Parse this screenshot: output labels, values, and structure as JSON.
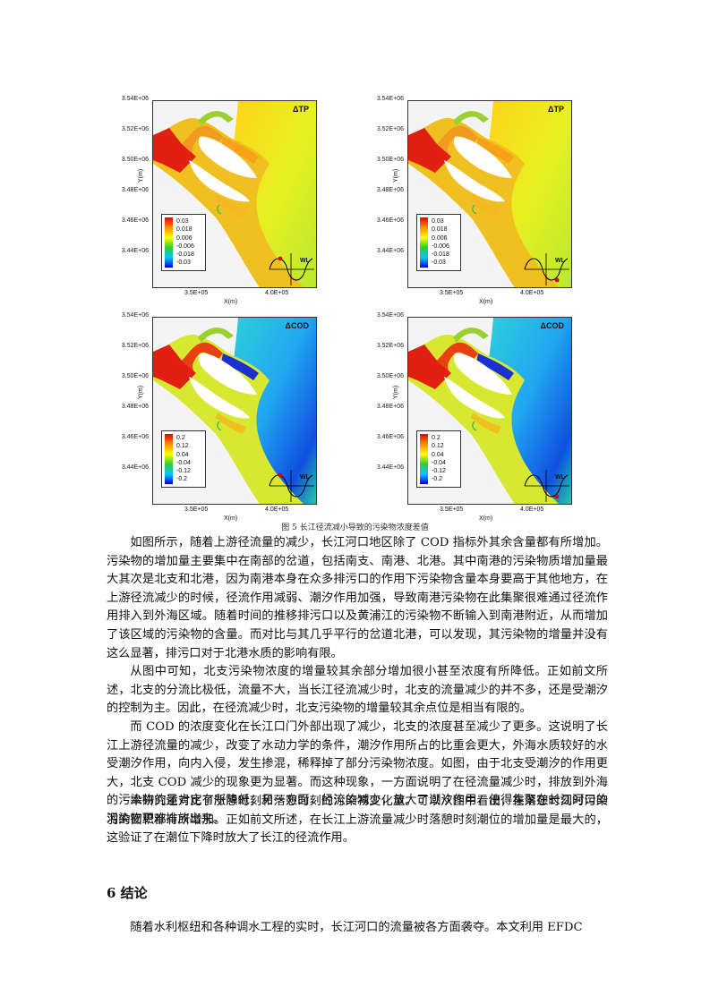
{
  "figure": {
    "panels": [
      {
        "variable": "ΔTP",
        "legend": [
          "0.03",
          "0.018",
          "0.006",
          "-0.006",
          "-0.018",
          "-0.03"
        ],
        "theme": "tp",
        "tide": "high"
      },
      {
        "variable": "ΔTP",
        "legend": [
          "0.03",
          "0.018",
          "0.006",
          "-0.006",
          "-0.018",
          "-0.03"
        ],
        "theme": "tp",
        "tide": "low"
      },
      {
        "variable": "ΔCOD",
        "legend": [
          "0.2",
          "0.12",
          "0.04",
          "-0.04",
          "-0.12",
          "-0.2"
        ],
        "theme": "cod",
        "tide": "high"
      },
      {
        "variable": "ΔCOD",
        "legend": [
          "0.2",
          "0.12",
          "0.04",
          "-0.04",
          "-0.12",
          "-0.2"
        ],
        "theme": "cod",
        "tide": "low"
      }
    ],
    "y_ticks": [
      "3.54E+06",
      "3.52E+06",
      "3.50E+06",
      "3.48E+06",
      "3.46E+06",
      "3.44E+06"
    ],
    "x_ticks": [
      "3.5E+05",
      "4.0E+05"
    ],
    "y_label": "Y(m)",
    "x_label": "X(m)",
    "wl_label": "WL",
    "caption": "图 5  长江径流减小导致的污染物浓度差值"
  },
  "paragraphs": [
    "如图所示，随着上游径流量的减少，长江河口地区除了 COD 指标外其余含量都有所增加。污染物的增加量主要集中在南部的岔道，包括南支、南港、北港。其中南港的污染物质增加量最大其次是北支和北港，因为南港本身在众多排污口的作用下污染物含量本身要高于其他地方，在上游径流减少的时候，径流作用减弱、潮汐作用加强，导致南港污染物在此集聚很难通过径流作用排入到外海区域。随着时间的推移排污口以及黄浦江的污染物不断输入到南港附近，从而增加了该区域的污染物的含量。而对比与其几乎平行的岔道北港，可以发现，其污染物的增量并没有这么显著，排污口对于北港水质的影响有限。",
    "从图中可知，北支污染物浓度的增量较其余部分增加很小甚至浓度有所降低。正如前文所述，北支的分流比极低，流量不大，当长江径流减少时，北支的流量减少的并不多，还是受潮汐的控制为主。因此，在径流减少时，北支污染物的增量较其余点位是相当有限的。",
    "而 COD 的浓度变化在长江口门外部出现了减少，北支的浓度甚至减少了更多。这说明了长江上游径流量的减少，改变了水动力学的条件，潮汐作用所占的比重会更大，外海水质较好的水受潮汐作用，向内入侵，发生掺混，稀释掉了部分污染物浓度。如图，由于北支受潮汐的作用更大，北支 COD 减少的现象更为显著。而这种现象，一方面说明了在径流量减少时，排放到外海的污染物的量肯定有所降低；另一方面，径流的减少，放大了潮汐作用，使得集聚在长江河口的污染物更难排放出来。",
    "本研究还对比了涨憩时刻和落憩时刻的污染物变化量。可以从图中看出，在落憩时刻时污染羽的面积都有所增加。正如前文所述，在长江上游流量减少时落憩时刻潮位的增加量是最大的，这验证了在潮位下降时放大了长江的径流作用。",
    "随着水利枢纽和各种调水工程的实时，长江河口的流量被各方面袭夺。本文利用 EFDC"
  ],
  "section_heading": "6  结论"
}
